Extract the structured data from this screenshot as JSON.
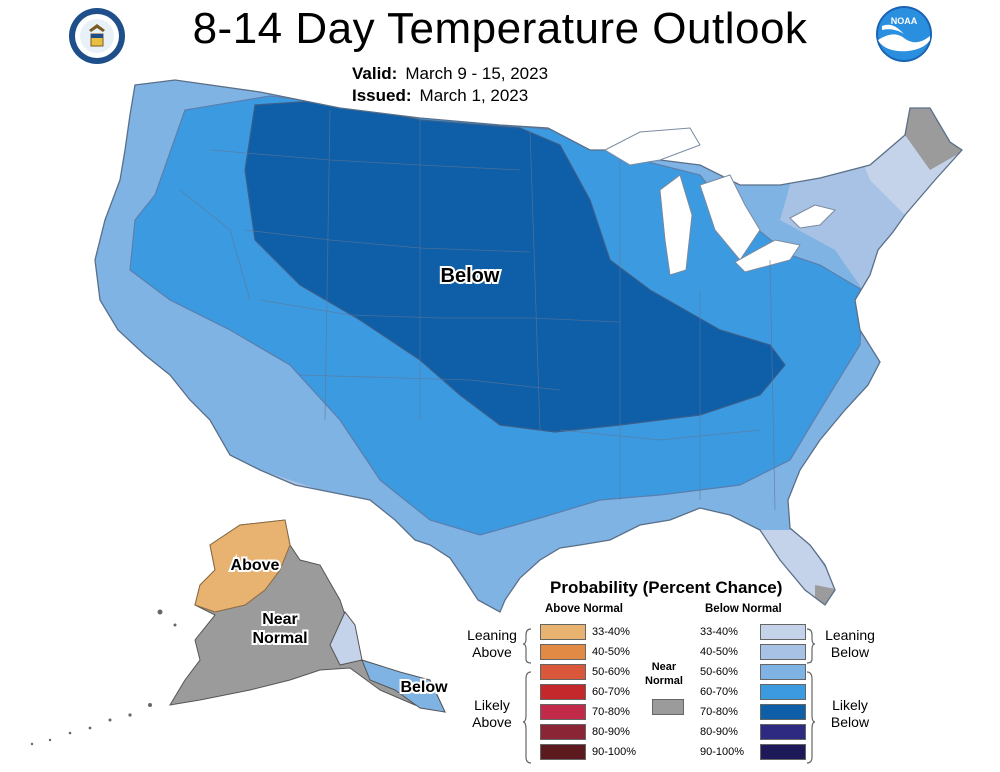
{
  "title": "8-14 Day Temperature Outlook",
  "valid": {
    "label": "Valid:",
    "value": "March 9 - 15, 2023"
  },
  "issued": {
    "label": "Issued:",
    "value": "March 1, 2023"
  },
  "logos": {
    "left": "department-of-commerce-seal",
    "right": "noaa-logo"
  },
  "map_labels": {
    "conus_below": "Below",
    "alaska_above": "Above",
    "alaska_near_1": "Near",
    "alaska_near_2": "Normal",
    "alaska_below": "Below"
  },
  "colors": {
    "below_33_40": "#c5d3ea",
    "below_40_50": "#a7c2e4",
    "below_50_60": "#7fb3e4",
    "below_60_70": "#3c9ae0",
    "below_70_80": "#0e5ea8",
    "above_33_40": "#e8b271",
    "near_normal": "#9b9b9b"
  },
  "legend": {
    "title": "Probability (Percent Chance)",
    "above_header": "Above Normal",
    "below_header": "Below Normal",
    "above_rows": [
      {
        "label": "33-40%",
        "color": "#e8b271"
      },
      {
        "label": "40-50%",
        "color": "#e08a45"
      },
      {
        "label": "50-60%",
        "color": "#d9583a"
      },
      {
        "label": "60-70%",
        "color": "#c5282a"
      },
      {
        "label": "70-80%",
        "color": "#c22a4a"
      },
      {
        "label": "80-90%",
        "color": "#8a2535"
      },
      {
        "label": "90-100%",
        "color": "#5c1a1f"
      }
    ],
    "below_rows": [
      {
        "label": "33-40%",
        "color": "#c5d3ea"
      },
      {
        "label": "40-50%",
        "color": "#a7c2e4"
      },
      {
        "label": "50-60%",
        "color": "#7fb3e4"
      },
      {
        "label": "60-70%",
        "color": "#3c9ae0"
      },
      {
        "label": "70-80%",
        "color": "#0e5ea8"
      },
      {
        "label": "80-90%",
        "color": "#2e2a82"
      },
      {
        "label": "90-100%",
        "color": "#1e1a5a"
      }
    ],
    "leaning_above": "Leaning Above",
    "likely_above": "Likely Above",
    "leaning_below": "Leaning Below",
    "likely_below": "Likely Below",
    "near_normal_1": "Near",
    "near_normal_2": "Normal"
  }
}
